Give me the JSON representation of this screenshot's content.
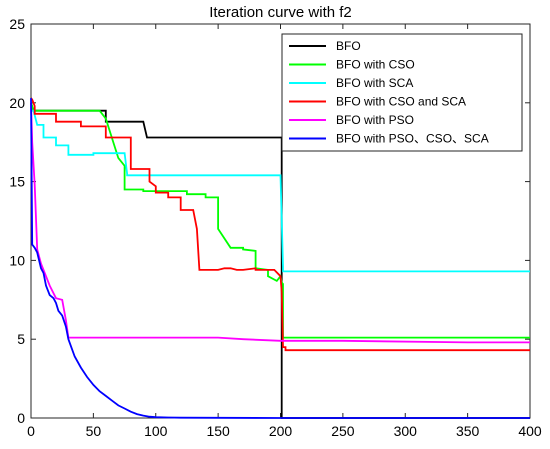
{
  "chart_data": {
    "type": "line",
    "title": "Iteration curve with f2",
    "xlabel": "",
    "ylabel": "",
    "xlim": [
      0,
      400
    ],
    "ylim": [
      0,
      25
    ],
    "xticks": [
      0,
      50,
      100,
      150,
      200,
      250,
      300,
      350,
      400
    ],
    "yticks": [
      0,
      5,
      10,
      15,
      20,
      25
    ],
    "grid": false,
    "legend_position": "top-right",
    "series": [
      {
        "name": "BFO",
        "color": "#000000",
        "x": [
          0,
          2,
          60,
          60,
          90,
          93,
          200,
          201,
          201,
          400
        ],
        "y": [
          20.0,
          19.5,
          19.5,
          18.8,
          18.8,
          17.8,
          17.8,
          17.8,
          0.0,
          0.0
        ]
      },
      {
        "name": "BFO with CSO",
        "color": "#00ff00",
        "x": [
          0,
          2,
          55,
          60,
          70,
          75,
          75,
          90,
          90,
          125,
          125,
          140,
          140,
          150,
          150,
          160,
          170,
          170,
          180,
          180,
          190,
          190,
          197,
          200,
          201,
          202,
          202,
          400
        ],
        "y": [
          20.0,
          19.5,
          19.5,
          19.0,
          16.5,
          16.0,
          14.5,
          14.5,
          14.4,
          14.4,
          14.2,
          14.2,
          14.0,
          14.0,
          12.0,
          10.8,
          10.8,
          10.7,
          10.6,
          9.5,
          9.4,
          9.0,
          8.7,
          9.0,
          8.6,
          8.5,
          5.1,
          5.1
        ]
      },
      {
        "name": "BFO with SCA",
        "color": "#00ffff",
        "x": [
          0,
          2,
          5,
          10,
          10,
          20,
          20,
          30,
          30,
          50,
          50,
          75,
          77,
          77,
          200,
          202,
          202,
          400
        ],
        "y": [
          19.5,
          19.5,
          18.6,
          18.6,
          17.8,
          17.8,
          17.3,
          17.3,
          16.7,
          16.7,
          16.8,
          16.8,
          15.5,
          15.4,
          15.4,
          9.6,
          9.3,
          9.3
        ]
      },
      {
        "name": "BFO with CSO and SCA",
        "color": "#ff0000",
        "x": [
          0,
          1,
          3,
          3,
          20,
          20,
          40,
          40,
          60,
          60,
          80,
          80,
          95,
          95,
          100,
          100,
          110,
          110,
          120,
          120,
          130,
          133,
          135,
          135,
          150,
          155,
          160,
          165,
          170,
          180,
          180,
          195,
          200,
          201,
          202,
          204,
          204,
          400
        ],
        "y": [
          20.3,
          20.2,
          19.8,
          19.3,
          19.3,
          18.8,
          18.8,
          18.5,
          18.5,
          17.8,
          17.8,
          15.8,
          15.8,
          15.0,
          14.7,
          14.3,
          14.3,
          14.0,
          14.0,
          13.2,
          13.2,
          12.0,
          9.4,
          9.4,
          9.4,
          9.5,
          9.5,
          9.4,
          9.4,
          9.5,
          9.4,
          9.4,
          9.0,
          8.0,
          4.5,
          4.5,
          4.3,
          4.3
        ]
      },
      {
        "name": "BFO with PSO",
        "color": "#ff00ff",
        "x": [
          0,
          1,
          3,
          5,
          8,
          12,
          15,
          20,
          25,
          28,
          30,
          32,
          150,
          170,
          200,
          250,
          350,
          400
        ],
        "y": [
          20.0,
          17.5,
          14.8,
          10.7,
          9.8,
          9.0,
          8.4,
          7.6,
          7.5,
          6.2,
          5.1,
          5.1,
          5.1,
          5.0,
          4.9,
          4.9,
          4.8,
          4.8
        ]
      },
      {
        "name": "BFO with PSO、CSO、SCA",
        "color": "#0000ff",
        "x": [
          0,
          1,
          3,
          5,
          8,
          10,
          12,
          15,
          18,
          20,
          22,
          25,
          28,
          30,
          35,
          40,
          45,
          50,
          55,
          60,
          65,
          70,
          75,
          80,
          85,
          90,
          95,
          100,
          110,
          120,
          150,
          200,
          300,
          400
        ],
        "y": [
          20.3,
          11.0,
          10.8,
          10.5,
          9.5,
          9.2,
          8.4,
          7.8,
          7.6,
          7.3,
          6.8,
          6.5,
          5.8,
          5.0,
          3.9,
          3.2,
          2.6,
          2.1,
          1.7,
          1.4,
          1.1,
          0.8,
          0.6,
          0.4,
          0.25,
          0.15,
          0.08,
          0.05,
          0.03,
          0.02,
          0.01,
          0.0,
          0.0,
          0.0
        ]
      }
    ]
  }
}
